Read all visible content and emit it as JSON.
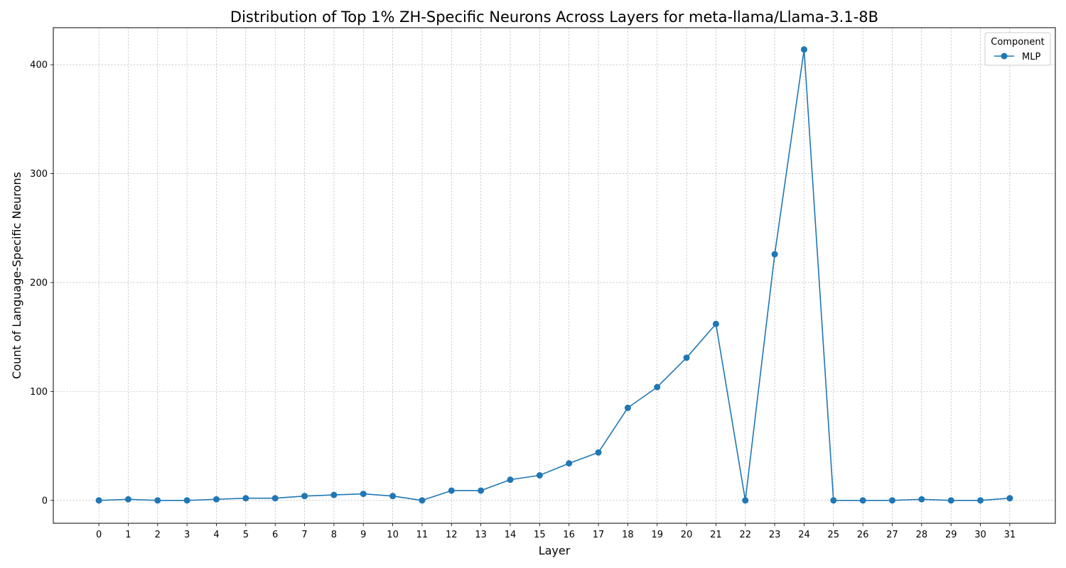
{
  "chart_data": {
    "type": "line",
    "title": "Distribution of Top 1% ZH-Specific Neurons Across Layers for meta-llama/Llama-3.1-8B",
    "xlabel": "Layer",
    "ylabel": "Count of Language-Specific Neurons",
    "x": [
      0,
      1,
      2,
      3,
      4,
      5,
      6,
      7,
      8,
      9,
      10,
      11,
      12,
      13,
      14,
      15,
      16,
      17,
      18,
      19,
      20,
      21,
      22,
      23,
      24,
      25,
      26,
      27,
      28,
      29,
      30,
      31
    ],
    "series": [
      {
        "name": "MLP",
        "color": "#1f77b4",
        "marker": "circle",
        "values": [
          0,
          1,
          0,
          0,
          1,
          2,
          2,
          4,
          5,
          6,
          4,
          0,
          9,
          9,
          19,
          23,
          34,
          44,
          85,
          104,
          131,
          162,
          0,
          226,
          414,
          0,
          0,
          0,
          1,
          0,
          0,
          2
        ]
      }
    ],
    "yticks": [
      0,
      100,
      200,
      300,
      400
    ],
    "ylim": [
      -21,
      434
    ],
    "xlim": [
      -1.55,
      32.55
    ],
    "grid": true,
    "legend": {
      "title": "Component",
      "placement": "top-right"
    }
  }
}
